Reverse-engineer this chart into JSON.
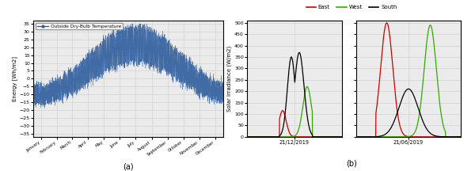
{
  "left_title": "Outside Dry-Bulb Temperature",
  "left_ylabel": "Energy [Wh/m2]",
  "left_yticks": [
    -35,
    -30,
    -25,
    -20,
    -15,
    -10,
    -5,
    0,
    5,
    10,
    15,
    20,
    25,
    30,
    35
  ],
  "left_ylim": [
    -37,
    37
  ],
  "left_months": [
    "January",
    "February",
    "March",
    "April",
    "May",
    "June",
    "July",
    "August",
    "September",
    "October",
    "November",
    "December"
  ],
  "subplot_label_a": "(a)",
  "subplot_label_b": "(b)",
  "right_ylabel": "Solar Irradiance (W/m2)",
  "right_yticks": [
    0,
    50,
    100,
    150,
    200,
    250,
    300,
    350,
    400,
    450,
    500
  ],
  "right_ylim": [
    0,
    510
  ],
  "legend_labels": [
    "East",
    "West",
    "South"
  ],
  "legend_colors": [
    "#cc0000",
    "#33aa00",
    "#000000"
  ],
  "date_winter": "21/12/2019",
  "date_summer": "21/06/2019",
  "line_color": "#2e5d9e",
  "grid_color": "#cccccc",
  "background_color": "#ebebeb"
}
